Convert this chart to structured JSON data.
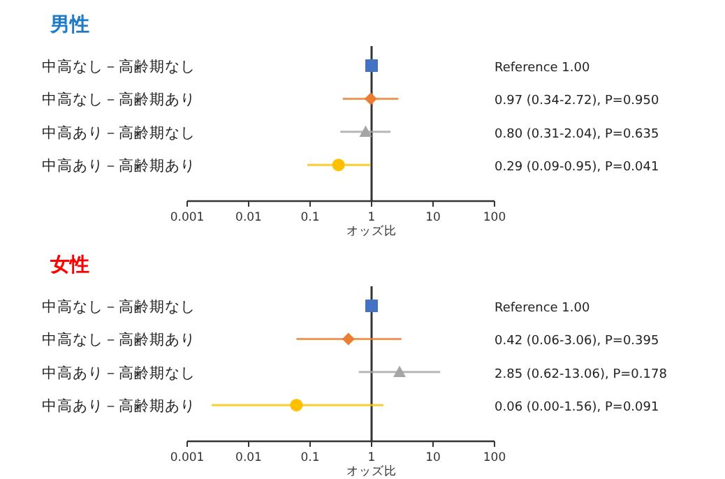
{
  "chart_data": [
    {
      "type": "scatter",
      "orientation": "horizontal",
      "title": "男性",
      "xlabel": "オッズ比",
      "log": "x",
      "xlim": [
        0.001,
        100
      ],
      "xticks": [
        0.001,
        0.01,
        0.1,
        1,
        10,
        100
      ],
      "categories": [
        "中高なし－高齢期なし",
        "中高なし－高齢期あり",
        "中高あり－高齢期なし",
        "中高あり－高齢期あり"
      ],
      "ref_lines": [
        {
          "axis": "x",
          "value": 1,
          "color": "#333333"
        }
      ],
      "annotations": [
        "Reference  1.00",
        "0.97 (0.34-2.72), P=0.950",
        "0.80 (0.31-2.04), P=0.635",
        "0.29 (0.09-0.95), P=0.041"
      ],
      "series": [
        {
          "color": "#4472c4",
          "marker": "square",
          "values": [
            1,
            null,
            null,
            null
          ],
          "errors": [
            null,
            null,
            null,
            null
          ]
        },
        {
          "color": "#ed7d31",
          "marker": "diamond",
          "values": [
            null,
            0.97,
            null,
            null
          ],
          "errors": [
            null,
            [
              0.34,
              2.72
            ],
            null,
            null
          ]
        },
        {
          "color": "#a5a5a5",
          "marker": "triangle",
          "values": [
            null,
            null,
            0.8,
            null
          ],
          "errors": [
            null,
            null,
            [
              0.31,
              2.04
            ],
            null
          ]
        },
        {
          "color": "#ffc000",
          "marker": "circle",
          "values": [
            null,
            null,
            null,
            0.29
          ],
          "errors": [
            null,
            null,
            null,
            [
              0.09,
              0.95
            ]
          ]
        }
      ]
    },
    {
      "type": "scatter",
      "orientation": "horizontal",
      "title": "女性",
      "xlabel": "オッズ比",
      "log": "x",
      "xlim": [
        0.001,
        100
      ],
      "xticks": [
        0.001,
        0.01,
        0.1,
        1,
        10,
        100
      ],
      "categories": [
        "中高なし－高齢期なし",
        "中高なし－高齢期あり",
        "中高あり－高齢期なし",
        "中高あり－高齢期あり"
      ],
      "ref_lines": [
        {
          "axis": "x",
          "value": 1,
          "color": "#333333"
        }
      ],
      "annotations": [
        "Reference  1.00",
        "0.42 (0.06-3.06), P=0.395",
        "2.85 (0.62-13.06), P=0.178",
        "0.06 (0.00-1.56), P=0.091"
      ],
      "series": [
        {
          "color": "#4472c4",
          "marker": "square",
          "values": [
            1,
            null,
            null,
            null
          ],
          "errors": [
            null,
            null,
            null,
            null
          ]
        },
        {
          "color": "#ed7d31",
          "marker": "diamond",
          "values": [
            null,
            0.42,
            null,
            null
          ],
          "errors": [
            null,
            [
              0.06,
              3.06
            ],
            null,
            null
          ]
        },
        {
          "color": "#a5a5a5",
          "marker": "triangle",
          "values": [
            null,
            null,
            2.85,
            null
          ],
          "errors": [
            null,
            null,
            [
              0.62,
              13.06
            ],
            null
          ]
        },
        {
          "color": "#ffc000",
          "marker": "circle",
          "values": [
            null,
            null,
            null,
            0.06
          ],
          "errors": [
            null,
            null,
            null,
            [
              0.0025,
              1.56
            ]
          ]
        }
      ]
    }
  ]
}
